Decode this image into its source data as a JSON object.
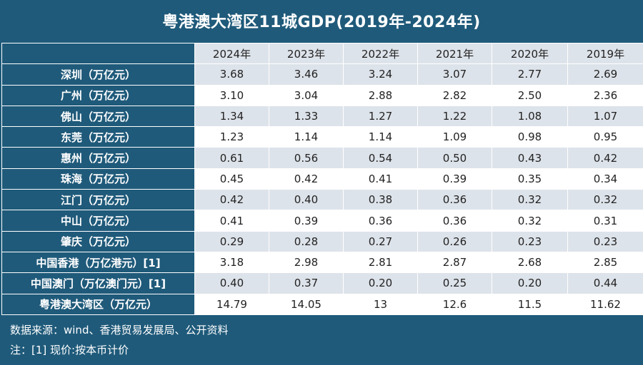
{
  "title": "粤港澳大湾区11城GDP(2019年-2024年)",
  "table": {
    "columns": [
      "2024年",
      "2023年",
      "2022年",
      "2021年",
      "2020年",
      "2019年"
    ],
    "rows": [
      {
        "label": "深圳（万亿元）",
        "values": [
          "3.68",
          "3.46",
          "3.24",
          "3.07",
          "2.77",
          "2.69"
        ]
      },
      {
        "label": "广州（万亿元）",
        "values": [
          "3.10",
          "3.04",
          "2.88",
          "2.82",
          "2.50",
          "2.36"
        ]
      },
      {
        "label": "佛山（万亿元）",
        "values": [
          "1.34",
          "1.33",
          "1.27",
          "1.22",
          "1.08",
          "1.07"
        ]
      },
      {
        "label": "东莞（万亿元）",
        "values": [
          "1.23",
          "1.14",
          "1.14",
          "1.09",
          "0.98",
          "0.95"
        ]
      },
      {
        "label": "惠州（万亿元）",
        "values": [
          "0.61",
          "0.56",
          "0.54",
          "0.50",
          "0.43",
          "0.42"
        ]
      },
      {
        "label": "珠海（万亿元）",
        "values": [
          "0.45",
          "0.42",
          "0.41",
          "0.39",
          "0.35",
          "0.34"
        ]
      },
      {
        "label": "江门（万亿元）",
        "values": [
          "0.42",
          "0.40",
          "0.38",
          "0.36",
          "0.32",
          "0.32"
        ]
      },
      {
        "label": "中山（万亿元）",
        "values": [
          "0.41",
          "0.39",
          "0.36",
          "0.36",
          "0.32",
          "0.31"
        ]
      },
      {
        "label": "肇庆（万亿元）",
        "values": [
          "0.29",
          "0.28",
          "0.27",
          "0.26",
          "0.23",
          "0.23"
        ]
      },
      {
        "label": "中国香港（万亿港元）[1]",
        "values": [
          "3.18",
          "2.98",
          "2.81",
          "2.87",
          "2.68",
          "2.85"
        ]
      },
      {
        "label": "中国澳门（万亿澳门元）[1]",
        "values": [
          "0.40",
          "0.37",
          "0.20",
          "0.25",
          "0.20",
          "0.44"
        ]
      },
      {
        "label": "粤港澳大湾区（万亿元）",
        "values": [
          "14.79",
          "14.05",
          "13",
          "12.6",
          "11.5",
          "11.62"
        ]
      }
    ]
  },
  "footer": {
    "source": "数据来源：wind、香港贸易发展局、公开资料",
    "note": "注：[1] 现价:按本币计价"
  },
  "colors": {
    "frame": "#1f5a7a",
    "band": "#dde3ea",
    "white": "#ffffff"
  }
}
